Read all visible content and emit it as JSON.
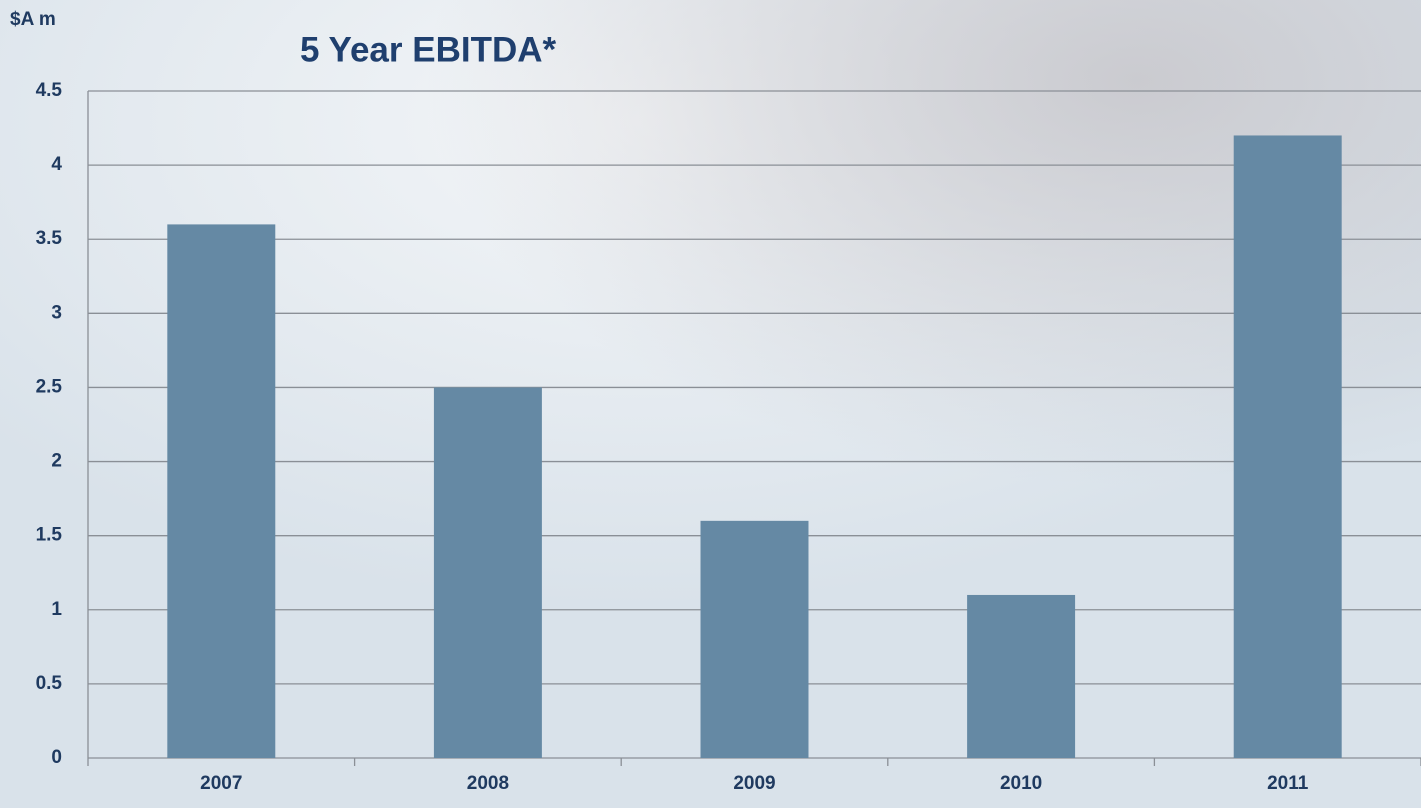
{
  "chart_data": {
    "type": "bar",
    "title": "5 Year EBITDA*",
    "y_label": "$A m",
    "categories": [
      "2007",
      "2008",
      "2009",
      "2010",
      "2011"
    ],
    "values": [
      3.6,
      2.5,
      1.6,
      1.1,
      4.2
    ],
    "color": "#6589a4",
    "ylim": [
      0,
      4.5
    ],
    "yticks": [
      0,
      0.5,
      1,
      1.5,
      2,
      2.5,
      3,
      3.5,
      4,
      4.5
    ],
    "grid": true
  }
}
